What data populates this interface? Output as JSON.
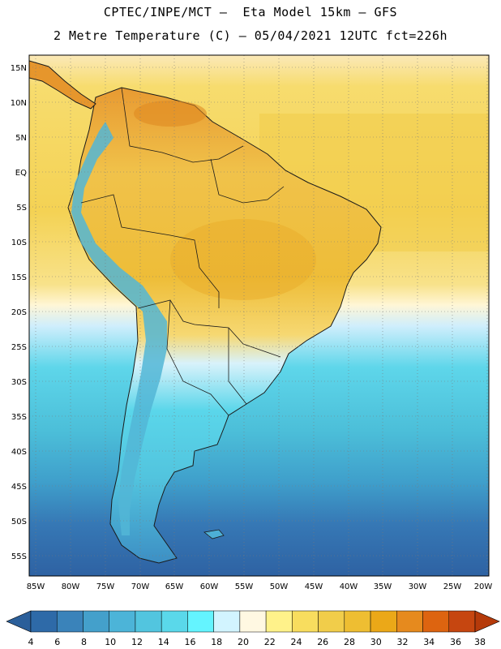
{
  "header": {
    "line1": "CPTEC/INPE/MCT –  Eta Model 15km – GFS",
    "line2": "2 Metre Temperature (C) – 05/04/2021 12UTC fct=226h"
  },
  "map": {
    "lat_ticks": [
      "15N",
      "10N",
      "5N",
      "EQ",
      "5S",
      "10S",
      "15S",
      "20S",
      "25S",
      "30S",
      "35S",
      "40S",
      "45S",
      "50S",
      "55S"
    ],
    "lon_ticks": [
      "85W",
      "80W",
      "75W",
      "70W",
      "65W",
      "60W",
      "55W",
      "50W",
      "45W",
      "40W",
      "35W",
      "30W",
      "25W",
      "20W"
    ]
  },
  "colorbar": {
    "colors": [
      "#2e6aa8",
      "#3a83ba",
      "#44a0cb",
      "#4cb4d8",
      "#52c5df",
      "#5ad8ea",
      "#64f4ff",
      "#d2f4ff",
      "#fff8e2",
      "#fff28a",
      "#f8dd5e",
      "#f1cd4a",
      "#eebe32",
      "#eba818",
      "#e68a1e",
      "#dd6410",
      "#c64610"
    ],
    "left_arrow_color": "#2b5f9a",
    "right_arrow_color": "#b53a0a",
    "labels": [
      "4",
      "6",
      "8",
      "10",
      "12",
      "14",
      "16",
      "18",
      "20",
      "22",
      "24",
      "26",
      "28",
      "30",
      "32",
      "34",
      "36",
      "38"
    ]
  }
}
